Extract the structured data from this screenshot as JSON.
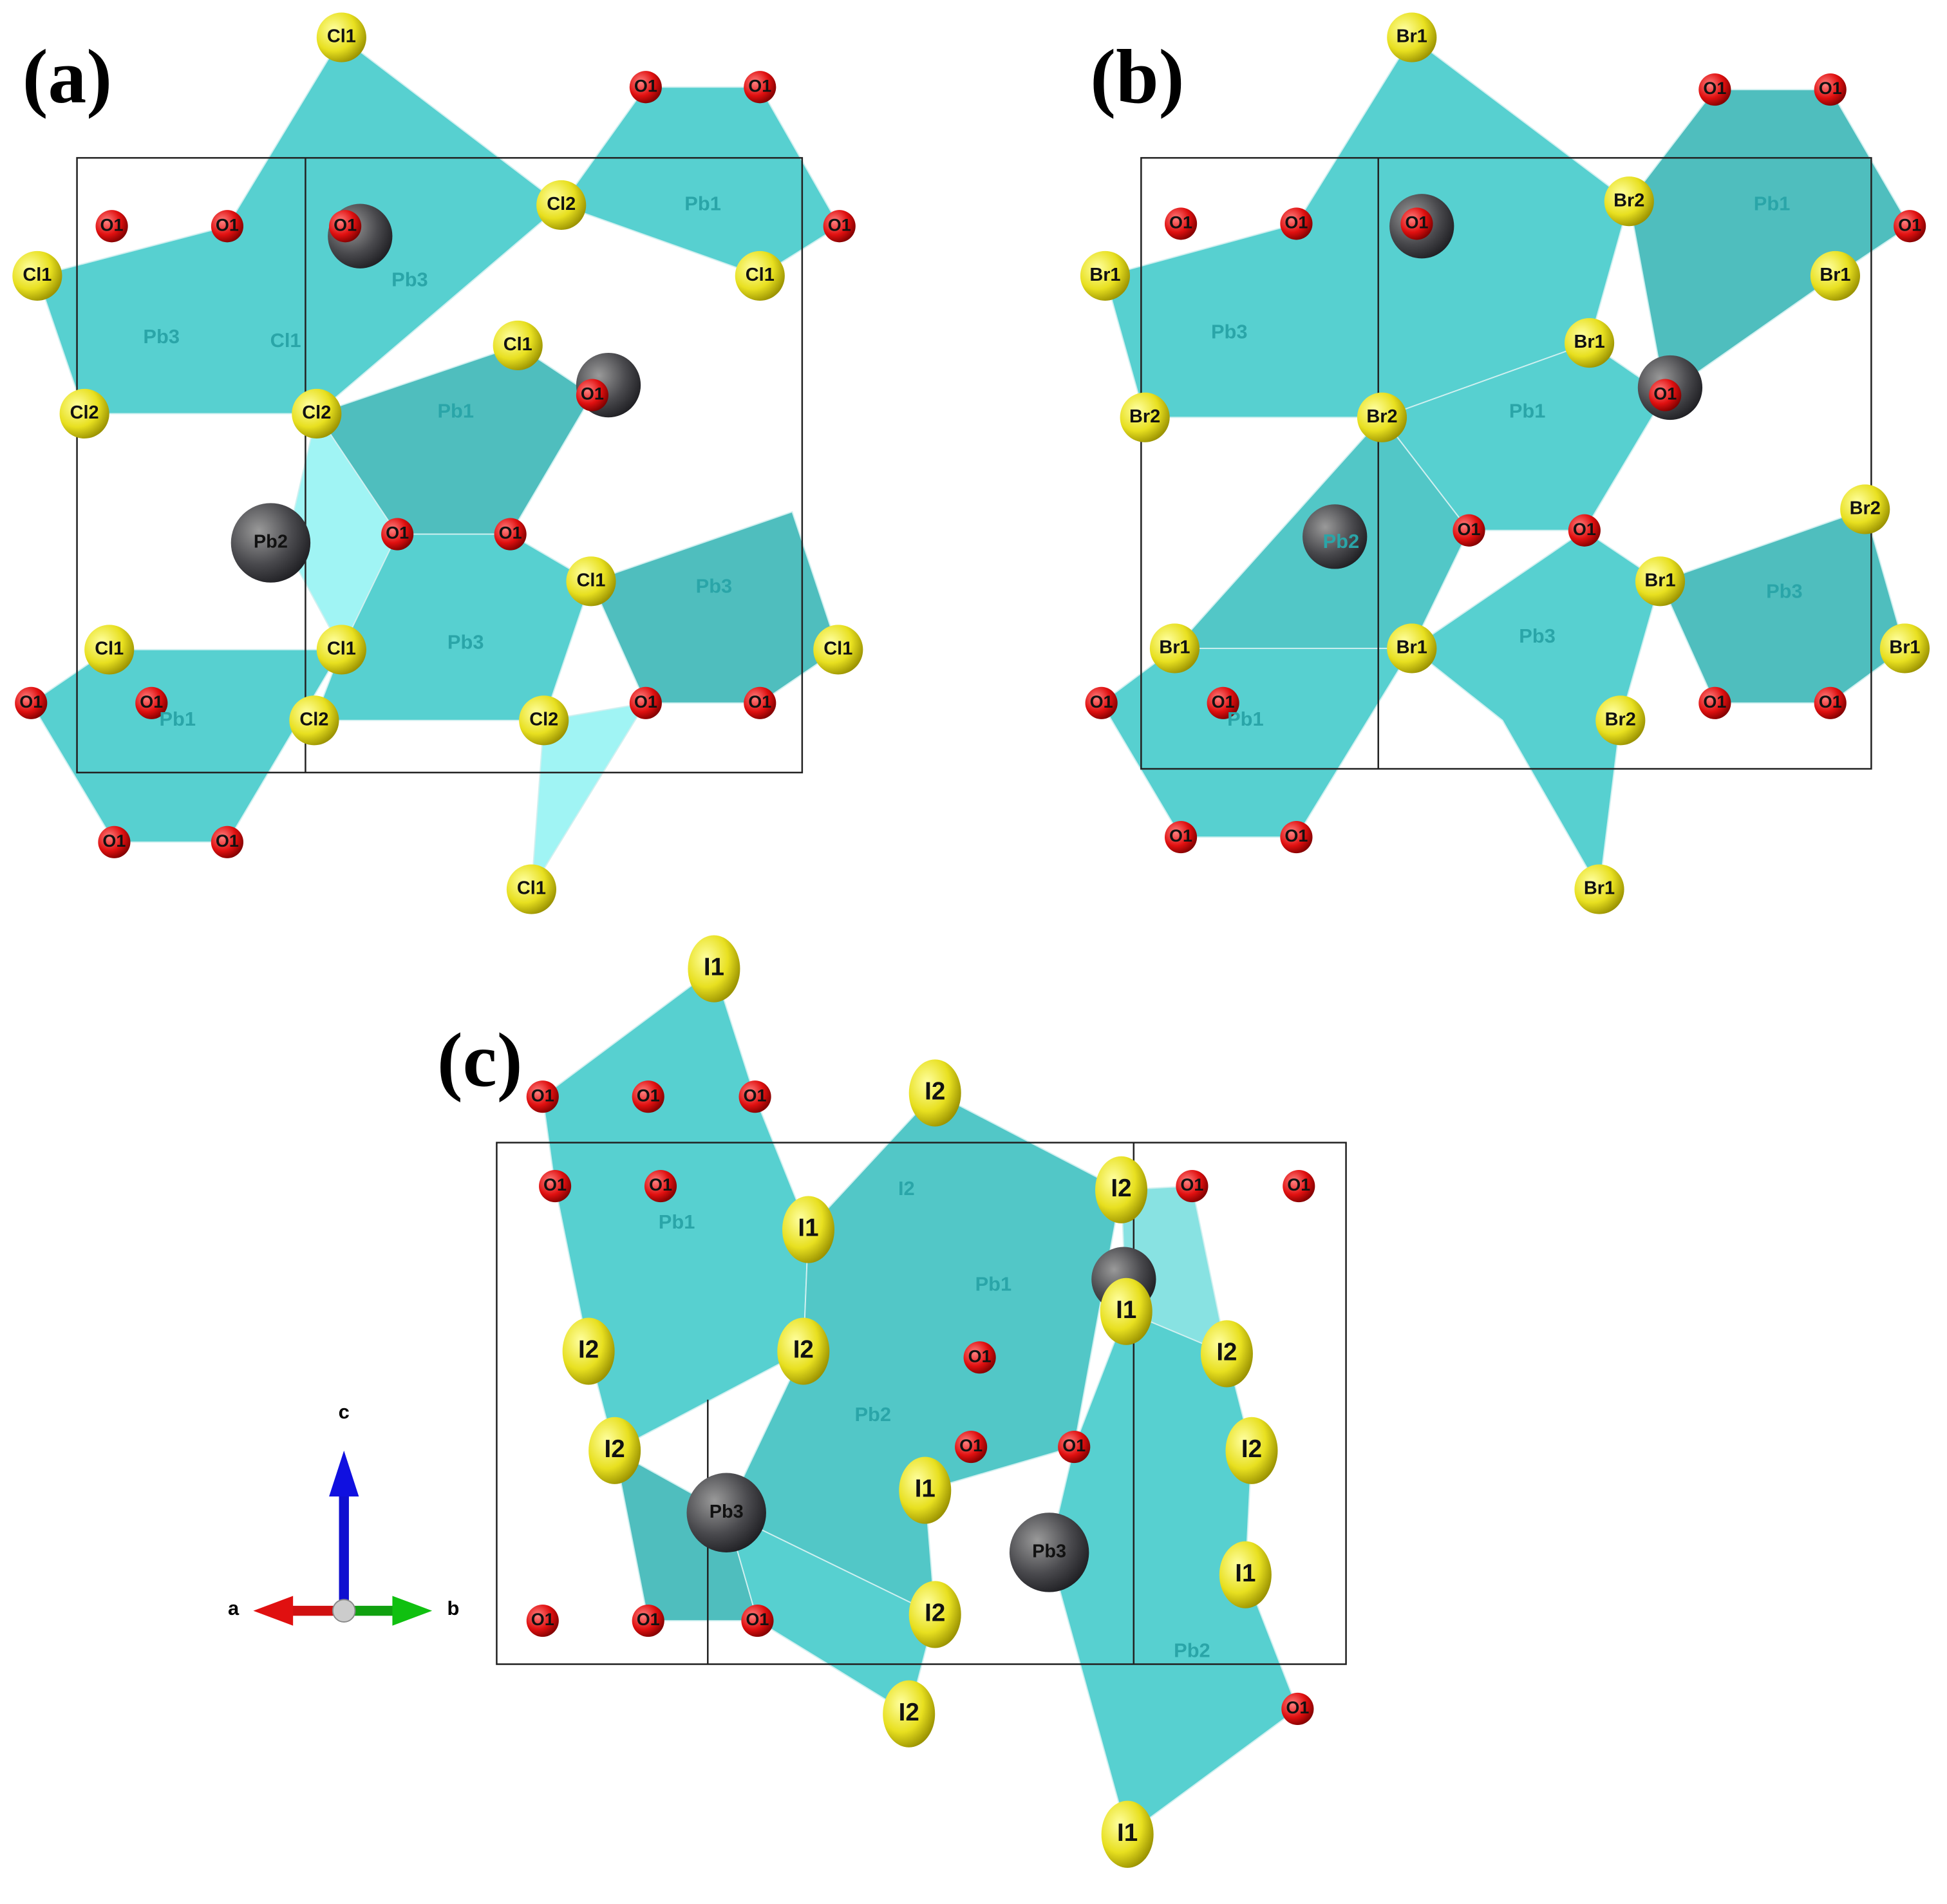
{
  "panels": [
    {
      "label": "(a)",
      "atoms": [
        "Cl1",
        "O1",
        "O1",
        "O1",
        "O1",
        "O1",
        "Cl2",
        "Pb1",
        "O1",
        "Cl1",
        "Pb3",
        "Cl1",
        "Pb3",
        "Cl1",
        "Cl1",
        "O1",
        "Pb1",
        "Cl2",
        "Cl2",
        "Pb2",
        "O1",
        "O1",
        "Cl1",
        "Pb3",
        "Cl1",
        "Cl1",
        "Pb3",
        "Cl1",
        "O1",
        "O1",
        "Pb1",
        "Cl2",
        "Cl2",
        "O1",
        "O1",
        "O1",
        "O1",
        "Cl1"
      ]
    },
    {
      "label": "(b)",
      "atoms": [
        "Br1",
        "O1",
        "O1",
        "O1",
        "O1",
        "O1",
        "Br2",
        "Pb1",
        "O1",
        "Br1",
        "Br1",
        "Pb3",
        "Br1",
        "Br2",
        "Br2",
        "Pb1",
        "O1",
        "O1",
        "O1",
        "Pb2",
        "Br2",
        "Br1",
        "Pb3",
        "Br1",
        "Br1",
        "Pb3",
        "Br1",
        "O1",
        "O1",
        "O1",
        "O1",
        "Br2",
        "Pb1",
        "O1",
        "O1",
        "Br1"
      ]
    },
    {
      "label": "(c)",
      "atoms": [
        "I1",
        "O1",
        "O1",
        "O1",
        "I2",
        "O1",
        "O1",
        "I2",
        "I2",
        "O1",
        "O1",
        "I1",
        "Pb1",
        "Pb1",
        "I1",
        "I2",
        "I2",
        "I2",
        "O1",
        "Pb2",
        "O1",
        "O1",
        "I2",
        "I2",
        "Pb3",
        "I1",
        "Pb3",
        "I1",
        "O1",
        "O1",
        "O1",
        "I2",
        "Pb2",
        "O1",
        "I2",
        "I1"
      ]
    }
  ],
  "axes": {
    "labels": [
      "c",
      "a",
      "b"
    ]
  }
}
